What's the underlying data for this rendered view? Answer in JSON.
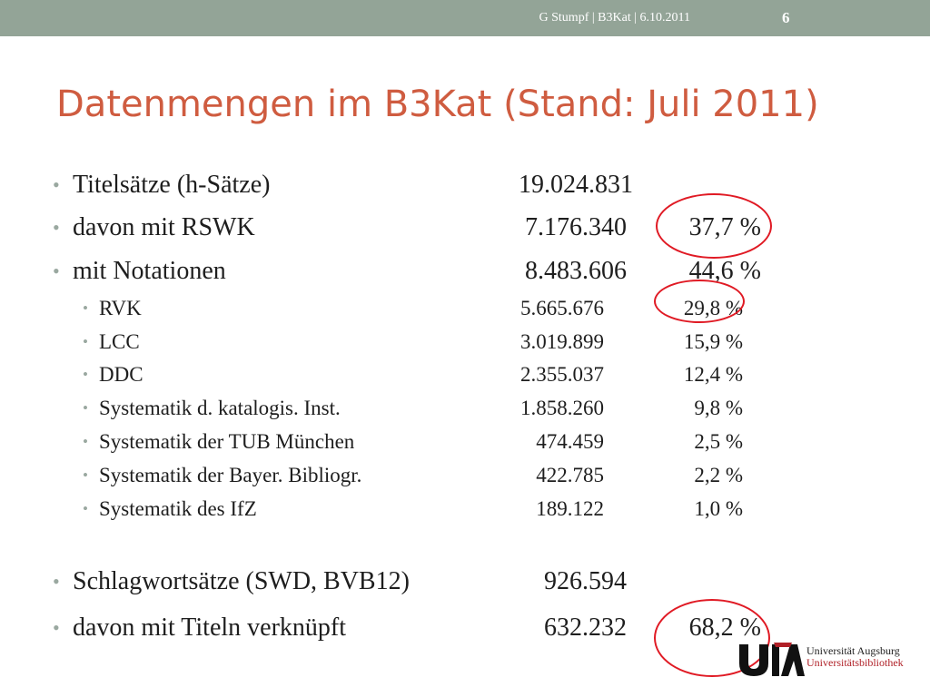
{
  "header": {
    "footer_text": "G Stumpf | B3Kat | 6.10.2011",
    "slide_number": "6"
  },
  "title": "Datenmengen im B3Kat (Stand: Juli 2011)",
  "rows": [
    {
      "label": "Titelsätze (h-Sätze)",
      "value": "19.024.831",
      "percent": ""
    },
    {
      "label": "davon mit RSWK",
      "value": "7.176.340",
      "percent": "37,7 %"
    },
    {
      "label": "mit Notationen",
      "value": "8.483.606",
      "percent": "44,6 %"
    },
    {
      "label": "RVK",
      "value": "5.665.676",
      "percent": "29,8 %"
    },
    {
      "label": "LCC",
      "value": "3.019.899",
      "percent": "15,9 %"
    },
    {
      "label": "DDC",
      "value": "2.355.037",
      "percent": "12,4 %"
    },
    {
      "label": "Systematik d. katalogis. Inst.",
      "value": "1.858.260",
      "percent": "9,8 %"
    },
    {
      "label": "Systematik der TUB München",
      "value": "474.459",
      "percent": "2,5 %"
    },
    {
      "label": "Systematik der Bayer. Bibliogr.",
      "value": "422.785",
      "percent": "2,2 %"
    },
    {
      "label": "Systematik des IfZ",
      "value": "189.122",
      "percent": "1,0 %"
    },
    {
      "label": "Schlagwortsätze (SWD, BVB12)",
      "value": "926.594",
      "percent": ""
    },
    {
      "label": "davon mit Titeln verknüpft",
      "value": "632.232",
      "percent": "68,2 %"
    }
  ],
  "logo": {
    "line1": "Universität Augsburg",
    "line2": "Universitätsbibliothek"
  },
  "colors": {
    "topbar": "#93a497",
    "title": "#cf5c40",
    "highlight_circle": "#e01a24"
  }
}
